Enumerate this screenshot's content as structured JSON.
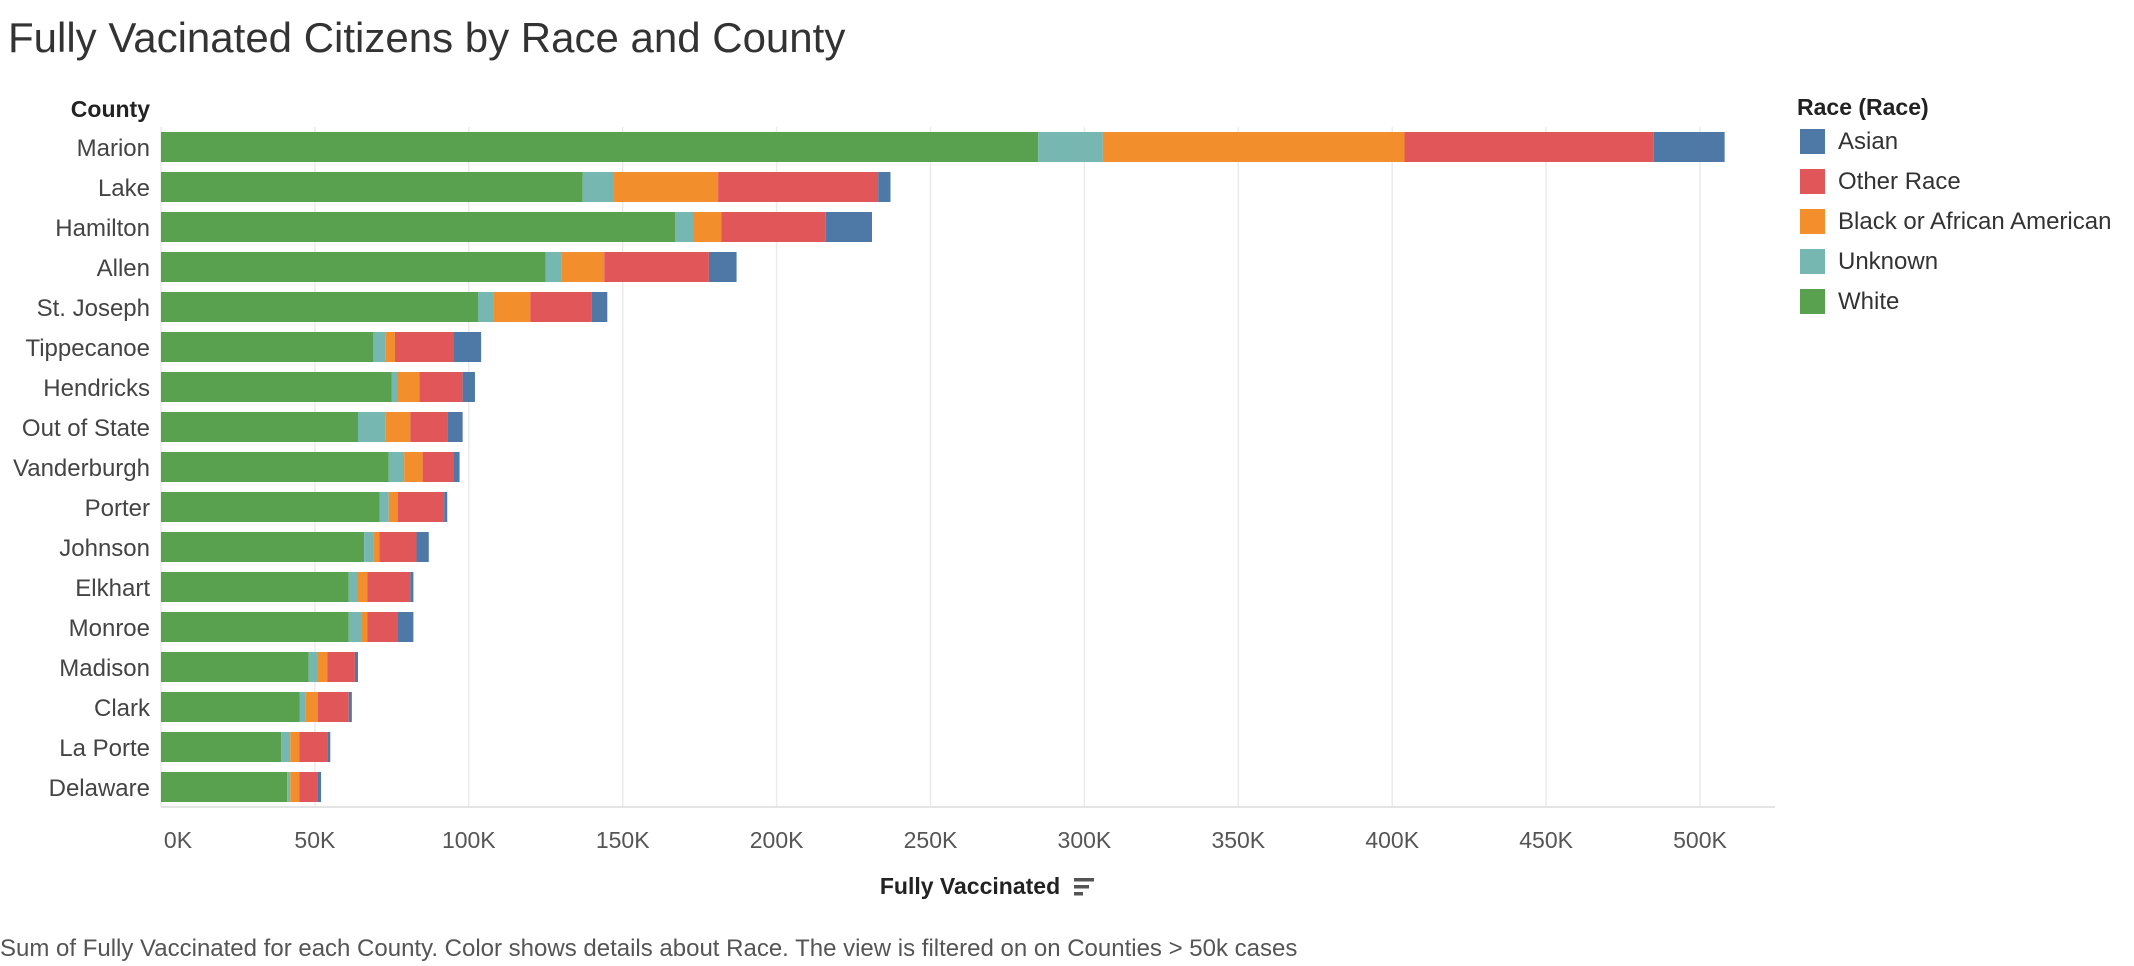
{
  "title": "Fully Vacinated Citizens by Race and County",
  "caption": "Sum of Fully Vaccinated for each County.  Color shows details about Race. The view is filtered on on Counties > 50k cases",
  "chart_data": {
    "type": "bar",
    "orientation": "horizontal",
    "stacked": true,
    "category_header": "County",
    "xlabel": "Fully Vaccinated",
    "xlim": [
      0,
      530000
    ],
    "ticks": [
      0,
      50000,
      100000,
      150000,
      200000,
      250000,
      300000,
      350000,
      400000,
      450000,
      500000
    ],
    "tick_labels": [
      "0K",
      "50K",
      "100K",
      "150K",
      "200K",
      "250K",
      "300K",
      "350K",
      "400K",
      "450K",
      "500K"
    ],
    "gridlines": "vertical",
    "legend_title": "Race (Race)",
    "legend_position": "right",
    "legend": [
      "Asian",
      "Other Race",
      "Black or African American",
      "Unknown",
      "White"
    ],
    "categories": [
      "Marion",
      "Lake",
      "Hamilton",
      "Allen",
      "St. Joseph",
      "Tippecanoe",
      "Hendricks",
      "Out of State",
      "Vanderburgh",
      "Porter",
      "Johnson",
      "Elkhart",
      "Monroe",
      "Madison",
      "Clark",
      "La Porte",
      "Delaware"
    ],
    "series": [
      {
        "name": "White",
        "color": "#59a14f",
        "values": [
          285000,
          137000,
          167000,
          125000,
          103000,
          69000,
          75000,
          64000,
          74000,
          71000,
          66000,
          61000,
          61000,
          48000,
          45000,
          39000,
          41000
        ]
      },
      {
        "name": "Unknown",
        "color": "#76b7b2",
        "values": [
          21000,
          10000,
          6000,
          5000,
          5000,
          4000,
          2000,
          9000,
          5000,
          3000,
          3000,
          3000,
          4000,
          3000,
          2000,
          3000,
          1000
        ]
      },
      {
        "name": "Black or African American",
        "color": "#f28e2b",
        "values": [
          98000,
          34000,
          9000,
          14000,
          12000,
          3000,
          7000,
          8000,
          6000,
          3000,
          2000,
          3000,
          2000,
          3000,
          4000,
          3000,
          3000
        ]
      },
      {
        "name": "Other Race",
        "color": "#e15759",
        "values": [
          81000,
          52000,
          34000,
          34000,
          20000,
          19000,
          14000,
          12000,
          10000,
          15000,
          12000,
          14000,
          10000,
          9000,
          10000,
          9000,
          6000
        ]
      },
      {
        "name": "Asian",
        "color": "#4e79a7",
        "values": [
          23000,
          4000,
          15000,
          9000,
          5000,
          9000,
          4000,
          5000,
          2000,
          1000,
          4000,
          1000,
          5000,
          1000,
          1000,
          1000,
          1000
        ]
      }
    ]
  }
}
